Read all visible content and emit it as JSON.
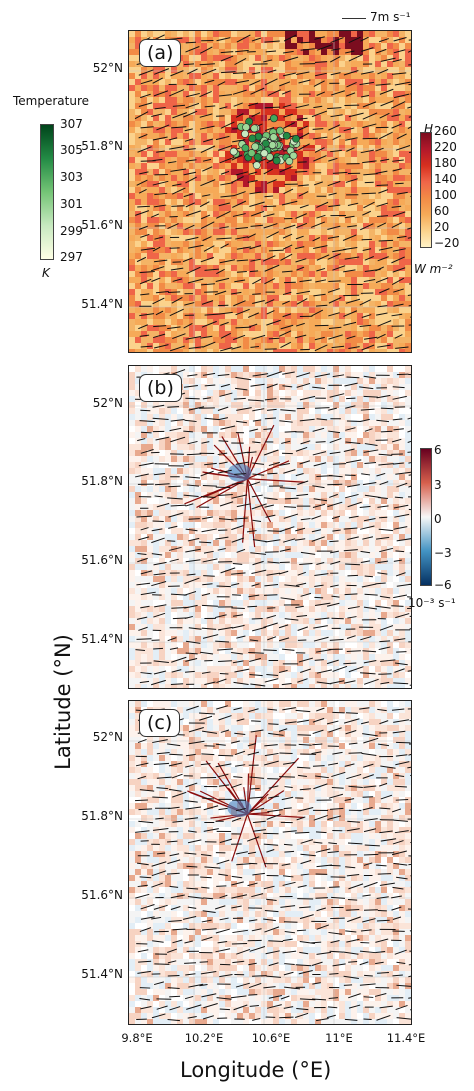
{
  "figure": {
    "y_axis_label": "Latitude (°N)",
    "x_axis_label": "Longitude (°E)",
    "lat_ticks": [
      "52°N",
      "51.8°N",
      "51.6°N",
      "51.4°N"
    ],
    "lon_ticks": [
      "9.8°E",
      "10.2°E",
      "10.6°E",
      "11°E",
      "11.4°E"
    ],
    "wind_reference": "7m s⁻¹"
  },
  "panels": [
    {
      "label": "(a)",
      "colorbar": {
        "title": "H",
        "ticks": [
          "260",
          "220",
          "180",
          "140",
          "100",
          "60",
          "20",
          "−20"
        ],
        "unit": "W m⁻²",
        "colors": [
          "#7b0d1f",
          "#b2182b",
          "#d7301f",
          "#ef6548",
          "#f28b46",
          "#f6aa58",
          "#fbd28c",
          "#fff2c6"
        ]
      }
    },
    {
      "label": "(b)",
      "colorbar": {
        "ticks": [
          "6",
          "3",
          "0",
          "−3",
          "−6"
        ],
        "unit": "10⁻³ s⁻¹",
        "colors": [
          "#67001f",
          "#d6604d",
          "#f7f7f7",
          "#4393c3",
          "#053061"
        ]
      }
    },
    {
      "label": "(c)"
    }
  ],
  "temperature_colorbar": {
    "title": "Temperature",
    "ticks": [
      "307",
      "305",
      "303",
      "301",
      "299",
      "297"
    ],
    "unit": "K",
    "colors": [
      "#00441b",
      "#238b45",
      "#74c476",
      "#c7e9c0",
      "#ffffe5"
    ]
  },
  "chart_data": {
    "type": "heatmap",
    "panels": [
      "(a)",
      "(b)",
      "(c)"
    ],
    "xlabel": "Longitude (°E)",
    "ylabel": "Latitude (°N)",
    "xlim": [
      9.8,
      11.45
    ],
    "ylim": [
      51.3,
      52.1
    ],
    "x_ticks": [
      9.8,
      10.2,
      10.6,
      11.0,
      11.4
    ],
    "y_ticks": [
      51.4,
      51.6,
      51.8,
      52.0
    ],
    "panel_a_colorbar": {
      "label": "H",
      "unit": "W m⁻²",
      "range": [
        -20,
        260
      ]
    },
    "panel_bc_colorbar": {
      "unit": "10⁻³ s⁻¹",
      "range": [
        -6,
        6
      ]
    },
    "temperature_colorbar": {
      "label": "Temperature",
      "unit": "K",
      "range": [
        297,
        307
      ]
    },
    "wind_reference_speed": "7 m s⁻¹"
  }
}
